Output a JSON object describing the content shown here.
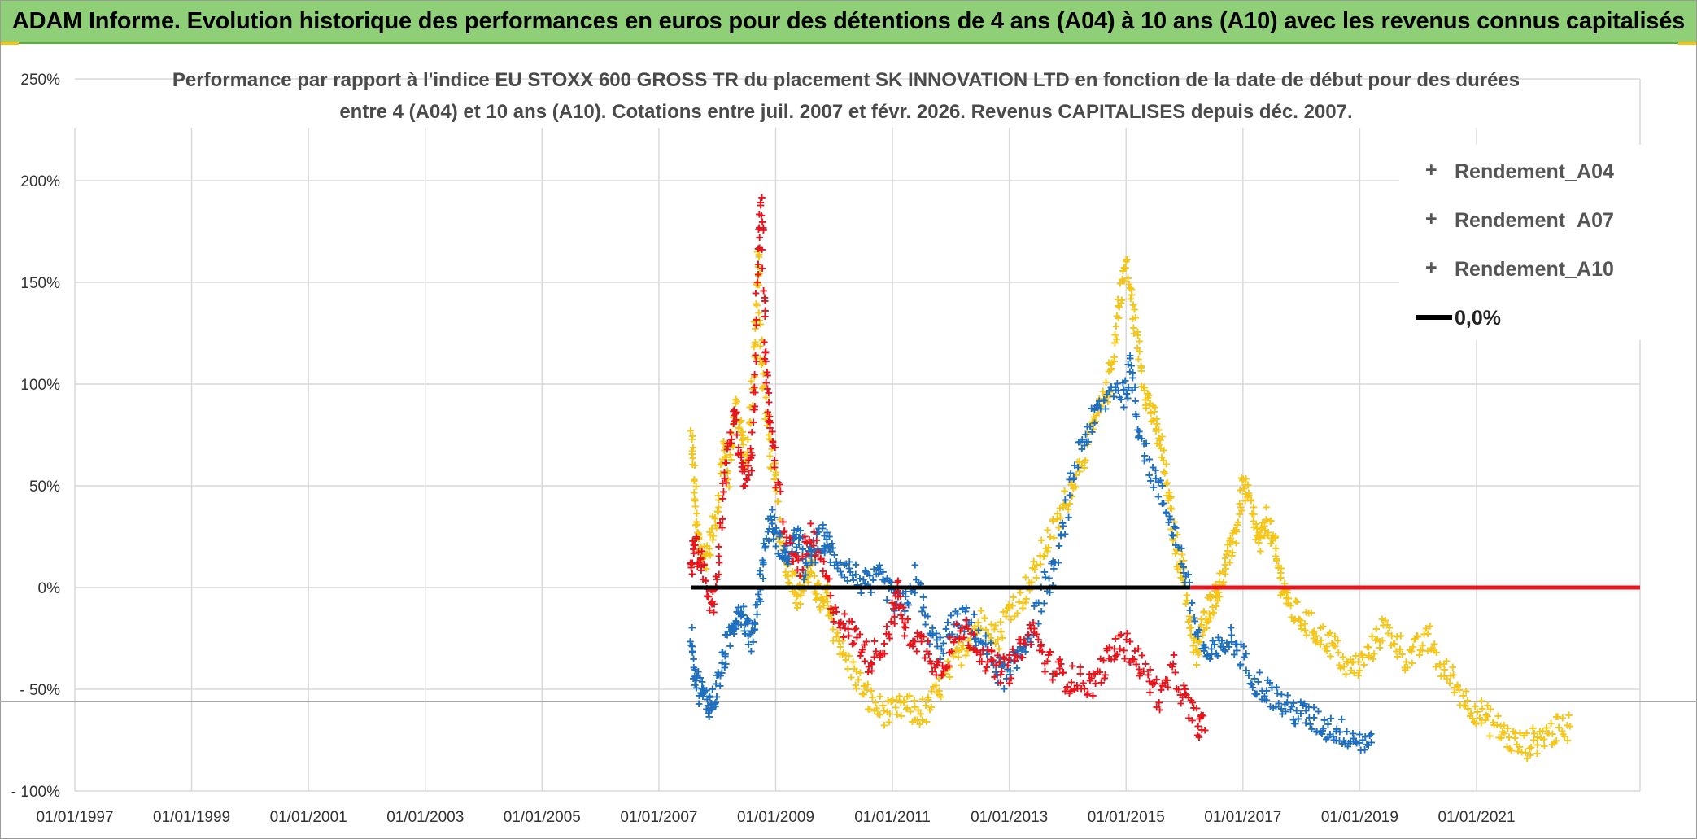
{
  "banner": {
    "title": "ADAM Informe. Evolution historique des performances en euros pour des détentions de 4 ans (A04) à 10 ans (A10) avec les revenus connus capitalisés"
  },
  "colors": {
    "banner_bg": "#8fcf78",
    "a04": "#f5c518",
    "a07": "#1f6fbf",
    "a10": "#e8131b",
    "zero": "#000000",
    "grid": "#d9d9d9"
  },
  "chart_data": {
    "type": "scatter",
    "title_lines": [
      "Performance par rapport à l'indice EU STOXX 600 GROSS TR  du placement SK INNOVATION LTD en fonction de la date de début pour des durées",
      "entre 4 (A04) et 10 ans (A10). Cotations entre juil. 2007 et févr. 2026. Revenus CAPITALISES depuis déc. 2007."
    ],
    "xlim": [
      1997.0,
      2023.8
    ],
    "ylim": [
      -100,
      250
    ],
    "y_ticks": [
      {
        "value": 250,
        "label": "250%"
      },
      {
        "value": 200,
        "label": "200%"
      },
      {
        "value": 150,
        "label": "150%"
      },
      {
        "value": 100,
        "label": "100%"
      },
      {
        "value": 50,
        "label": "50%"
      },
      {
        "value": 0,
        "label": "0%"
      },
      {
        "value": -50,
        "label": "- 50%"
      },
      {
        "value": -100,
        "label": "- 100%"
      }
    ],
    "x_ticks": [
      {
        "value": 1997,
        "label": "01/01/1997"
      },
      {
        "value": 1999,
        "label": "01/01/1999"
      },
      {
        "value": 2001,
        "label": "01/01/2001"
      },
      {
        "value": 2003,
        "label": "01/01/2003"
      },
      {
        "value": 2005,
        "label": "01/01/2005"
      },
      {
        "value": 2007,
        "label": "01/01/2007"
      },
      {
        "value": 2009,
        "label": "01/01/2009"
      },
      {
        "value": 2011,
        "label": "01/01/2011"
      },
      {
        "value": 2013,
        "label": "01/01/2013"
      },
      {
        "value": 2015,
        "label": "01/01/2015"
      },
      {
        "value": 2017,
        "label": "01/01/2017"
      },
      {
        "value": 2019,
        "label": "01/01/2019"
      },
      {
        "value": 2021,
        "label": "01/01/2021"
      }
    ],
    "reference_line_y": -56,
    "series": [
      {
        "name": "Rendement_A04",
        "color": "#f5c518",
        "points": [
          [
            2007.55,
            75
          ],
          [
            2007.6,
            55
          ],
          [
            2007.65,
            30
          ],
          [
            2007.7,
            20
          ],
          [
            2007.8,
            15
          ],
          [
            2007.9,
            25
          ],
          [
            2008.0,
            40
          ],
          [
            2008.1,
            70
          ],
          [
            2008.2,
            55
          ],
          [
            2008.3,
            90
          ],
          [
            2008.4,
            80
          ],
          [
            2008.5,
            60
          ],
          [
            2008.6,
            95
          ],
          [
            2008.65,
            130
          ],
          [
            2008.7,
            165
          ],
          [
            2008.75,
            120
          ],
          [
            2008.8,
            95
          ],
          [
            2008.9,
            70
          ],
          [
            2009.0,
            50
          ],
          [
            2009.1,
            20
          ],
          [
            2009.2,
            10
          ],
          [
            2009.3,
            5
          ],
          [
            2009.4,
            -5
          ],
          [
            2009.5,
            5
          ],
          [
            2009.6,
            10
          ],
          [
            2009.7,
            0
          ],
          [
            2009.8,
            -10
          ],
          [
            2009.9,
            -5
          ],
          [
            2010.0,
            -20
          ],
          [
            2010.2,
            -35
          ],
          [
            2010.4,
            -45
          ],
          [
            2010.6,
            -55
          ],
          [
            2010.8,
            -60
          ],
          [
            2011.0,
            -62
          ],
          [
            2011.2,
            -58
          ],
          [
            2011.4,
            -62
          ],
          [
            2011.6,
            -60
          ],
          [
            2011.8,
            -50
          ],
          [
            2012.0,
            -40
          ],
          [
            2012.2,
            -30
          ],
          [
            2012.4,
            -20
          ],
          [
            2012.6,
            -15
          ],
          [
            2012.8,
            -25
          ],
          [
            2013.0,
            -10
          ],
          [
            2013.2,
            -5
          ],
          [
            2013.4,
            5
          ],
          [
            2013.6,
            20
          ],
          [
            2013.8,
            30
          ],
          [
            2014.0,
            45
          ],
          [
            2014.2,
            60
          ],
          [
            2014.4,
            75
          ],
          [
            2014.6,
            90
          ],
          [
            2014.7,
            100
          ],
          [
            2014.8,
            120
          ],
          [
            2014.9,
            145
          ],
          [
            2015.0,
            160
          ],
          [
            2015.1,
            140
          ],
          [
            2015.2,
            120
          ],
          [
            2015.3,
            100
          ],
          [
            2015.4,
            90
          ],
          [
            2015.5,
            80
          ],
          [
            2015.6,
            70
          ],
          [
            2015.7,
            50
          ],
          [
            2015.8,
            30
          ],
          [
            2015.9,
            15
          ],
          [
            2016.0,
            5
          ],
          [
            2016.1,
            -20
          ],
          [
            2016.2,
            -35
          ],
          [
            2016.3,
            -20
          ],
          [
            2016.4,
            -10
          ],
          [
            2016.5,
            -5
          ],
          [
            2016.6,
            0
          ],
          [
            2016.7,
            10
          ],
          [
            2016.8,
            20
          ],
          [
            2016.9,
            30
          ],
          [
            2017.0,
            50
          ],
          [
            2017.1,
            45
          ],
          [
            2017.2,
            30
          ],
          [
            2017.3,
            20
          ],
          [
            2017.4,
            35
          ],
          [
            2017.5,
            25
          ],
          [
            2017.6,
            10
          ],
          [
            2017.7,
            0
          ],
          [
            2017.8,
            -10
          ],
          [
            2018.0,
            -15
          ],
          [
            2018.2,
            -20
          ],
          [
            2018.4,
            -25
          ],
          [
            2018.6,
            -30
          ],
          [
            2018.8,
            -40
          ],
          [
            2019.0,
            -38
          ],
          [
            2019.2,
            -30
          ],
          [
            2019.4,
            -20
          ],
          [
            2019.6,
            -25
          ],
          [
            2019.8,
            -35
          ],
          [
            2020.0,
            -30
          ],
          [
            2020.2,
            -25
          ],
          [
            2020.4,
            -40
          ],
          [
            2020.6,
            -45
          ],
          [
            2020.8,
            -55
          ],
          [
            2021.0,
            -60
          ],
          [
            2021.2,
            -65
          ],
          [
            2021.4,
            -70
          ],
          [
            2021.6,
            -75
          ],
          [
            2021.8,
            -78
          ],
          [
            2022.0,
            -75
          ],
          [
            2022.2,
            -72
          ],
          [
            2022.4,
            -70
          ],
          [
            2022.6,
            -68
          ]
        ]
      },
      {
        "name": "Rendement_A07",
        "color": "#1f6fbf",
        "points": [
          [
            2007.55,
            -20
          ],
          [
            2007.6,
            -40
          ],
          [
            2007.7,
            -50
          ],
          [
            2007.8,
            -55
          ],
          [
            2007.9,
            -58
          ],
          [
            2008.0,
            -50
          ],
          [
            2008.1,
            -35
          ],
          [
            2008.2,
            -25
          ],
          [
            2008.3,
            -15
          ],
          [
            2008.4,
            -10
          ],
          [
            2008.5,
            -20
          ],
          [
            2008.6,
            -25
          ],
          [
            2008.7,
            -5
          ],
          [
            2008.8,
            15
          ],
          [
            2008.9,
            35
          ],
          [
            2009.0,
            25
          ],
          [
            2009.1,
            20
          ],
          [
            2009.2,
            15
          ],
          [
            2009.3,
            20
          ],
          [
            2009.4,
            25
          ],
          [
            2009.5,
            10
          ],
          [
            2009.6,
            15
          ],
          [
            2009.7,
            20
          ],
          [
            2009.8,
            25
          ],
          [
            2009.9,
            20
          ],
          [
            2010.0,
            15
          ],
          [
            2010.2,
            10
          ],
          [
            2010.4,
            5
          ],
          [
            2010.6,
            0
          ],
          [
            2010.8,
            5
          ],
          [
            2011.0,
            -5
          ],
          [
            2011.2,
            -10
          ],
          [
            2011.4,
            5
          ],
          [
            2011.6,
            -20
          ],
          [
            2011.8,
            -30
          ],
          [
            2012.0,
            -20
          ],
          [
            2012.2,
            -15
          ],
          [
            2012.4,
            -20
          ],
          [
            2012.6,
            -30
          ],
          [
            2012.8,
            -40
          ],
          [
            2013.0,
            -45
          ],
          [
            2013.2,
            -30
          ],
          [
            2013.4,
            -20
          ],
          [
            2013.6,
            0
          ],
          [
            2013.8,
            10
          ],
          [
            2014.0,
            40
          ],
          [
            2014.2,
            70
          ],
          [
            2014.4,
            80
          ],
          [
            2014.6,
            90
          ],
          [
            2014.8,
            100
          ],
          [
            2015.0,
            95
          ],
          [
            2015.1,
            110
          ],
          [
            2015.2,
            80
          ],
          [
            2015.4,
            60
          ],
          [
            2015.6,
            45
          ],
          [
            2015.8,
            30
          ],
          [
            2016.0,
            10
          ],
          [
            2016.2,
            -20
          ],
          [
            2016.4,
            -35
          ],
          [
            2016.6,
            -30
          ],
          [
            2016.8,
            -25
          ],
          [
            2017.0,
            -35
          ],
          [
            2017.2,
            -45
          ],
          [
            2017.4,
            -50
          ],
          [
            2017.6,
            -55
          ],
          [
            2017.8,
            -60
          ],
          [
            2018.0,
            -62
          ],
          [
            2018.2,
            -65
          ],
          [
            2018.4,
            -68
          ],
          [
            2018.6,
            -70
          ],
          [
            2018.8,
            -72
          ],
          [
            2019.0,
            -75
          ],
          [
            2019.2,
            -76
          ]
        ]
      },
      {
        "name": "Rendement_A10",
        "color": "#e8131b",
        "points": [
          [
            2007.55,
            10
          ],
          [
            2007.6,
            20
          ],
          [
            2007.7,
            15
          ],
          [
            2007.8,
            5
          ],
          [
            2007.9,
            -10
          ],
          [
            2008.0,
            5
          ],
          [
            2008.1,
            45
          ],
          [
            2008.2,
            70
          ],
          [
            2008.3,
            90
          ],
          [
            2008.4,
            60
          ],
          [
            2008.5,
            50
          ],
          [
            2008.6,
            70
          ],
          [
            2008.65,
            110
          ],
          [
            2008.7,
            160
          ],
          [
            2008.75,
            195
          ],
          [
            2008.8,
            140
          ],
          [
            2008.85,
            100
          ],
          [
            2008.9,
            80
          ],
          [
            2009.0,
            60
          ],
          [
            2009.2,
            20
          ],
          [
            2009.4,
            10
          ],
          [
            2009.6,
            25
          ],
          [
            2009.8,
            10
          ],
          [
            2010.0,
            -10
          ],
          [
            2010.2,
            -20
          ],
          [
            2010.4,
            -25
          ],
          [
            2010.6,
            -35
          ],
          [
            2010.8,
            -30
          ],
          [
            2011.0,
            -15
          ],
          [
            2011.1,
            0
          ],
          [
            2011.2,
            -20
          ],
          [
            2011.4,
            -25
          ],
          [
            2011.6,
            -30
          ],
          [
            2011.8,
            -40
          ],
          [
            2012.0,
            -30
          ],
          [
            2012.2,
            -20
          ],
          [
            2012.4,
            -25
          ],
          [
            2012.6,
            -35
          ],
          [
            2012.8,
            -40
          ],
          [
            2013.0,
            -40
          ],
          [
            2013.2,
            -30
          ],
          [
            2013.4,
            -20
          ],
          [
            2013.6,
            -35
          ],
          [
            2013.8,
            -40
          ],
          [
            2014.0,
            -45
          ],
          [
            2014.2,
            -45
          ],
          [
            2014.4,
            -48
          ],
          [
            2014.6,
            -40
          ],
          [
            2014.8,
            -30
          ],
          [
            2015.0,
            -28
          ],
          [
            2015.2,
            -35
          ],
          [
            2015.4,
            -45
          ],
          [
            2015.6,
            -55
          ],
          [
            2015.8,
            -40
          ],
          [
            2016.0,
            -55
          ],
          [
            2016.2,
            -65
          ],
          [
            2016.35,
            -70
          ]
        ]
      }
    ],
    "zero_line_segments": [
      {
        "from": 2007.55,
        "to": 2016.1,
        "color": "#000000"
      },
      {
        "from": 2016.1,
        "to": 2023.8,
        "color": "#e8131b"
      }
    ],
    "legend": {
      "position": "top-right",
      "items": [
        {
          "label": "Rendement_A04",
          "color": "#f5c518",
          "marker": "+"
        },
        {
          "label": "Rendement_A07",
          "color": "#1f6fbf",
          "marker": "+"
        },
        {
          "label": "Rendement_A10",
          "color": "#e8131b",
          "marker": "+"
        },
        {
          "label": "0,0%",
          "color": "#000000",
          "marker": "line"
        }
      ]
    }
  }
}
